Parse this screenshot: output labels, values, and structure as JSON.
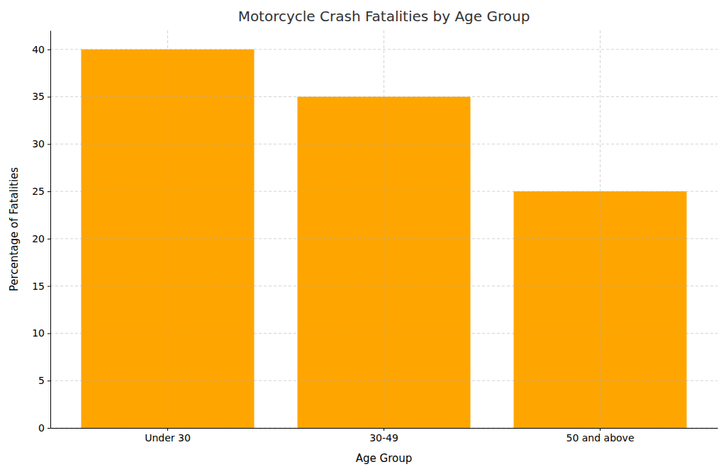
{
  "chart_data": {
    "type": "bar",
    "title": "Motorcycle Crash Fatalities by Age Group",
    "x_label": "Age Group",
    "y_label": "Percentage of Fatalities",
    "categories": [
      "Under 30",
      "30-49",
      "50 and above"
    ],
    "values": [
      40,
      35,
      25
    ],
    "color": "#ffa500",
    "ylim": [
      0,
      42
    ],
    "yticks": [
      0,
      5,
      10,
      15,
      20,
      25,
      30,
      35,
      40
    ],
    "grid": true
  }
}
